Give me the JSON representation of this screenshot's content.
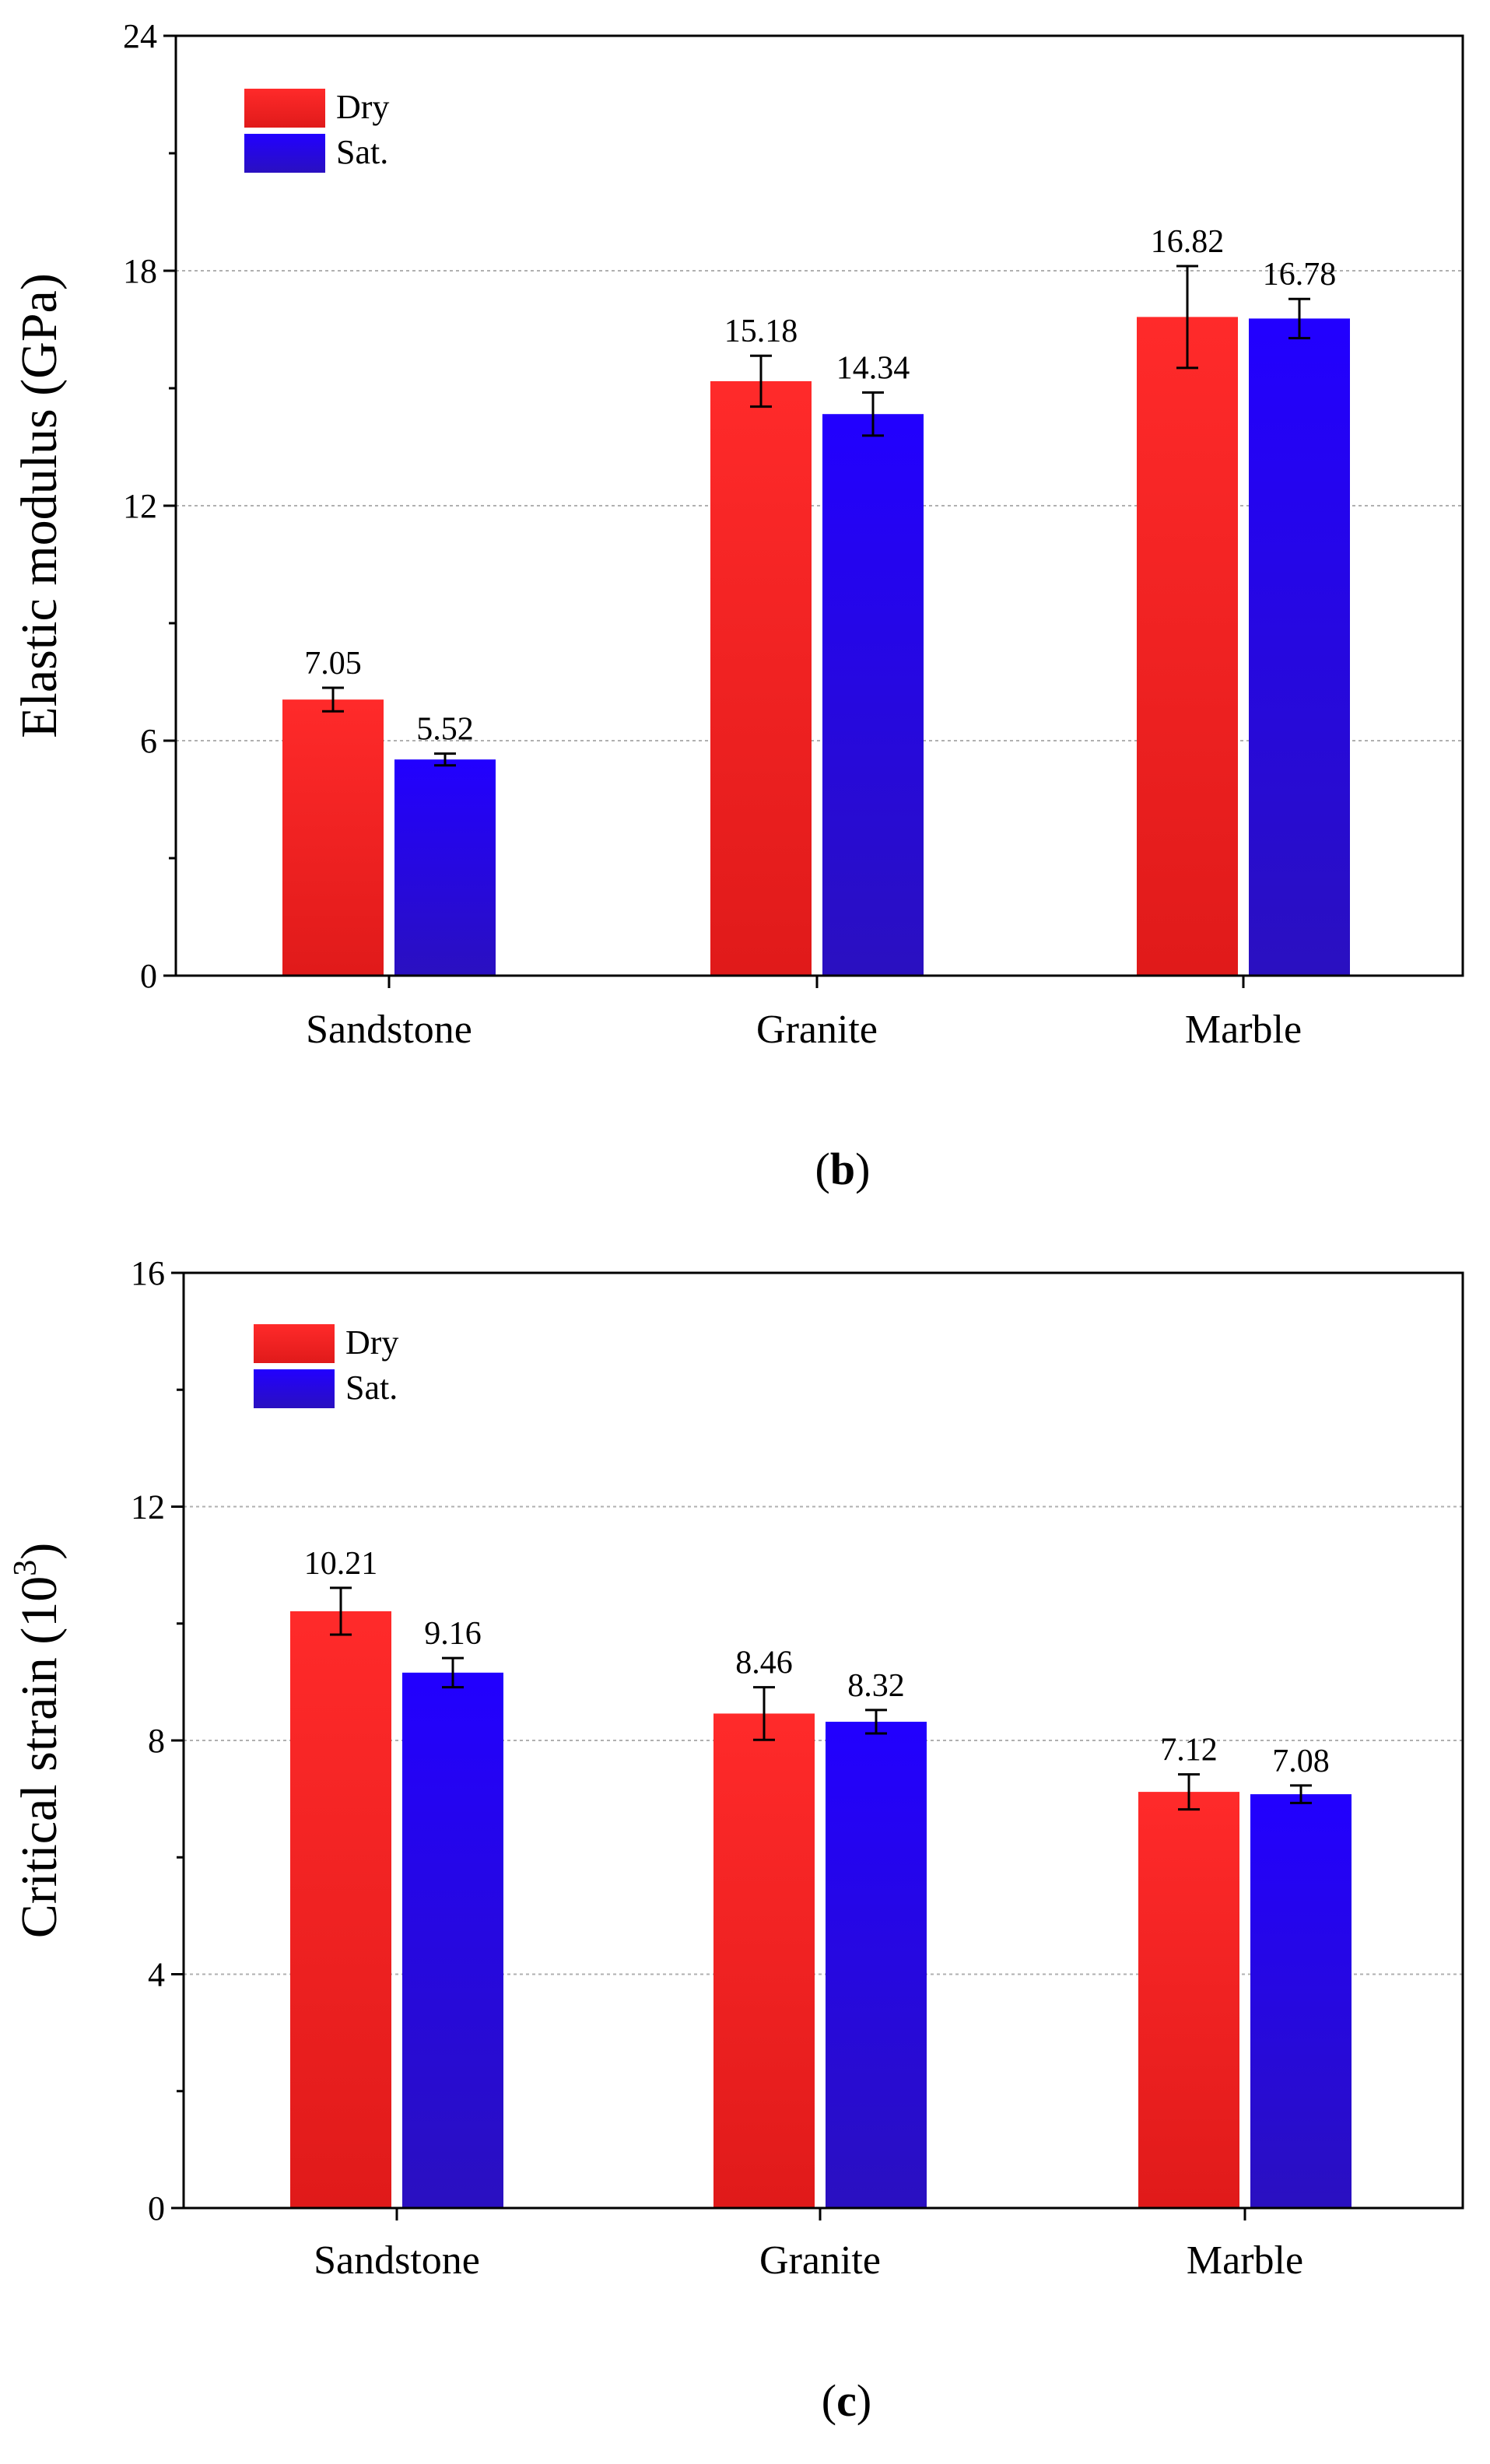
{
  "colors": {
    "dry_top": "#ff2a2a",
    "dry_bottom": "#e01a1a",
    "sat_top": "#2200ff",
    "sat_bottom": "#2a10c0",
    "axis": "#000000",
    "grid": "#b0b0b0"
  },
  "chart_data": [
    {
      "panel": "b",
      "panel_label": {
        "open": "(",
        "letter": "b",
        "close": ")"
      },
      "type": "bar",
      "categories": [
        "Sandstone",
        "Granite",
        "Marble"
      ],
      "ylabel": "Elastic modulus (GPa)",
      "ylim": [
        0,
        24
      ],
      "yticks": [
        0,
        6,
        12,
        18,
        24
      ],
      "yticks_labels": [
        "0",
        "6",
        "12",
        "18",
        "24"
      ],
      "grid": true,
      "legend_position": "top-left",
      "series": [
        {
          "name": "Dry",
          "key": "dry",
          "values": [
            7.05,
            15.18,
            16.82
          ],
          "errors": [
            0.3,
            0.65,
            1.3
          ],
          "labels": [
            "7.05",
            "15.18",
            "16.82"
          ]
        },
        {
          "name": "Sat.",
          "key": "sat",
          "values": [
            5.52,
            14.34,
            16.78
          ],
          "errors": [
            0.15,
            0.55,
            0.5
          ],
          "labels": [
            "5.52",
            "14.34",
            "16.78"
          ]
        }
      ]
    },
    {
      "panel": "c",
      "panel_label": {
        "open": "(",
        "letter": "c",
        "close": ")"
      },
      "type": "bar",
      "categories": [
        "Sandstone",
        "Granite",
        "Marble"
      ],
      "ylabel": "Critical strain (10",
      "ylabel_superscript": "3",
      "ylabel_suffix": ")",
      "ylim": [
        0,
        16
      ],
      "yticks": [
        0,
        4,
        8,
        12,
        16
      ],
      "yticks_labels": [
        "0",
        "4",
        "8",
        "12",
        "16"
      ],
      "grid": true,
      "legend_position": "top-left",
      "series": [
        {
          "name": "Dry",
          "key": "dry",
          "values": [
            10.21,
            8.46,
            7.12
          ],
          "errors": [
            0.4,
            0.45,
            0.3
          ],
          "labels": [
            "10.21",
            "8.46",
            "7.12"
          ]
        },
        {
          "name": "Sat.",
          "key": "sat",
          "values": [
            9.16,
            8.32,
            7.08
          ],
          "errors": [
            0.25,
            0.2,
            0.15
          ],
          "labels": [
            "9.16",
            "8.32",
            "7.08"
          ]
        }
      ]
    }
  ]
}
